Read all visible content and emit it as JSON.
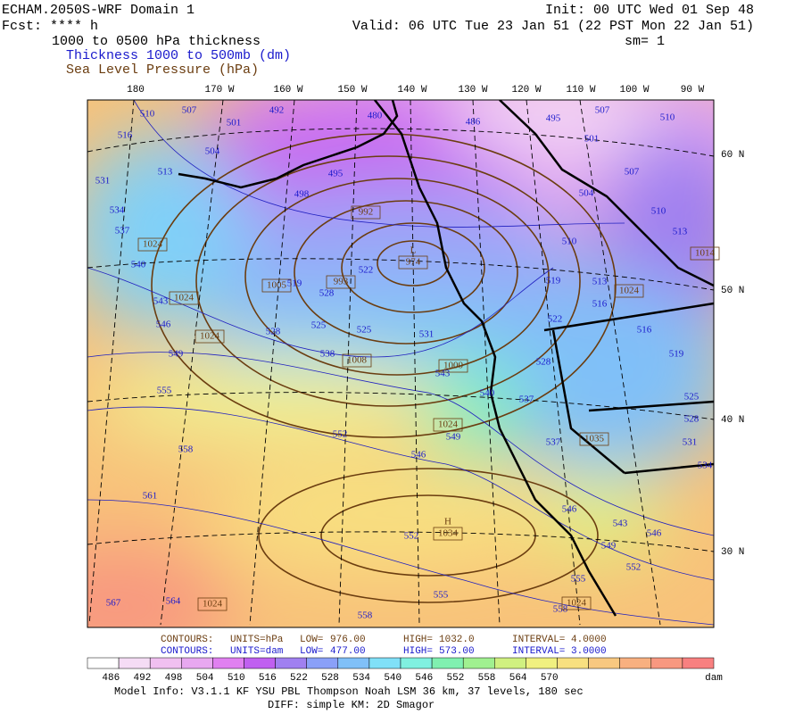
{
  "header": {
    "title": "ECHAM.2050S-WRF Domain 1",
    "fcst": "Fcst: **** h",
    "init": "Init: 00 UTC Wed 01 Sep 48",
    "valid": "Valid: 06 UTC Tue 23 Jan 51 (22 PST Mon 22 Jan 51)",
    "sm": "sm= 1",
    "field": "1000 to 0500 hPa thickness",
    "legend_thickness": "Thickness 1000 to 500mb (dm)",
    "legend_slp": "Sea Level Pressure (hPa)"
  },
  "map": {
    "lon_labels": [
      "180",
      "170 W",
      "160 W",
      "150 W",
      "140 W",
      "130 W",
      "120 W",
      "110 W",
      "100 W",
      "90 W"
    ],
    "lat_labels": [
      "60 N",
      "50 N",
      "40 N",
      "30 N"
    ],
    "thickness_labels": [
      510,
      507,
      501,
      492,
      504,
      516,
      513,
      531,
      534,
      537,
      540,
      543,
      546,
      549,
      555,
      558,
      561,
      564,
      567,
      498,
      495,
      480,
      486,
      495,
      507,
      510,
      501,
      507,
      504,
      510,
      513,
      510,
      519,
      513,
      516,
      522,
      516,
      519,
      528,
      537,
      540,
      525,
      528,
      531,
      534,
      537,
      546,
      543,
      546,
      549,
      552,
      555,
      558,
      555,
      558,
      552,
      549,
      546,
      552,
      543,
      531,
      525,
      525,
      528,
      522,
      519,
      528,
      538
    ],
    "slp_labels": [
      1024,
      1024,
      1024,
      992,
      974,
      1005,
      993,
      1008,
      1000,
      1024,
      1035,
      1034,
      1024,
      1024,
      1024,
      1014
    ],
    "low_marker": "L",
    "high_marker": "H"
  },
  "footer": {
    "slp_contours": [
      "CONTOURS:",
      "UNITS=hPa",
      "LOW=",
      "976.00",
      "HIGH=",
      "1032.0",
      "INTERVAL=",
      "4.0000"
    ],
    "thickness_contours": [
      "CONTOURS:",
      "UNITS=dam",
      "LOW=",
      "477.00",
      "HIGH=",
      "573.00",
      "INTERVAL=",
      "3.0000"
    ],
    "colorbar_labels": [
      486,
      492,
      498,
      504,
      510,
      516,
      522,
      528,
      534,
      540,
      546,
      552,
      558,
      564,
      570
    ],
    "colorbar_unit": "dam",
    "model_info": "Model Info: V3.1.1   KF      YSU PBL  Thompson     Noah LSM  36 km,    37 levels,  180 sec",
    "diff_info": "DIFF: simple KM: 2D Smagor"
  }
}
